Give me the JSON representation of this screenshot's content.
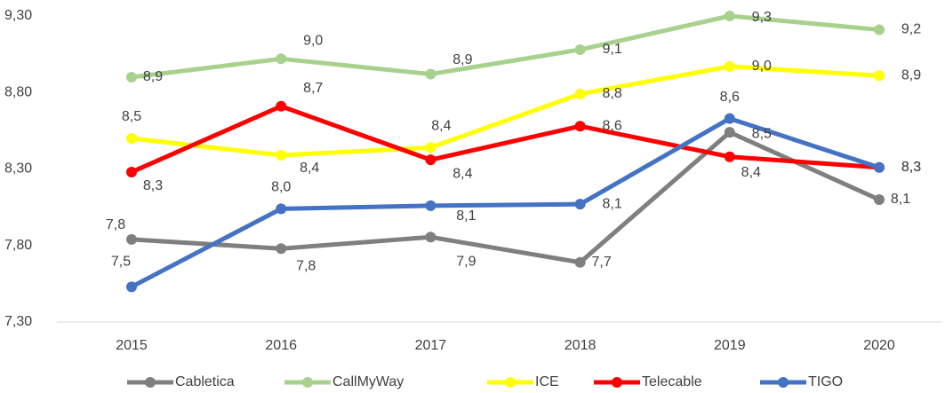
{
  "chart_data": {
    "type": "line",
    "categories": [
      "2015",
      "2016",
      "2017",
      "2018",
      "2019",
      "2020"
    ],
    "series": [
      {
        "name": "Cabletica",
        "color": "#7f7f7f",
        "values": [
          7.84,
          7.78,
          7.855,
          7.69,
          8.54,
          8.1
        ],
        "value_labels": [
          "7,8",
          "7,8",
          "7,9",
          "7,7",
          "8,5",
          "8,1"
        ]
      },
      {
        "name": "CallMyWay",
        "color": "#a9d18e",
        "values": [
          8.9,
          9.02,
          8.92,
          9.08,
          9.3,
          9.21
        ],
        "value_labels": [
          "8,9",
          "9,0",
          "8,9",
          "9,1",
          "9,3",
          "9,2"
        ]
      },
      {
        "name": "ICE",
        "color": "#ffff00",
        "values": [
          8.5,
          8.39,
          8.44,
          8.79,
          8.97,
          8.91
        ],
        "value_labels": [
          "8,5",
          "8,4",
          "8,4",
          "8,8",
          "9,0",
          "8,9"
        ]
      },
      {
        "name": "Telecable",
        "color": "#ff0000",
        "values": [
          8.28,
          8.71,
          8.36,
          8.58,
          8.38,
          8.31
        ],
        "value_labels": [
          "8,3",
          "8,7",
          "8,4",
          "8,6",
          "8,4",
          "8,3"
        ]
      },
      {
        "name": "TIGO",
        "color": "#4472c4",
        "values": [
          7.53,
          8.04,
          8.06,
          8.07,
          8.63,
          8.31
        ],
        "value_labels": [
          "7,5",
          "8,0",
          "8,1",
          "8,1",
          "8,6",
          "8,3"
        ]
      }
    ],
    "ylim": [
      7.3,
      9.3
    ],
    "yticks": [
      {
        "value": 7.3,
        "label": "7,30"
      },
      {
        "value": 7.8,
        "label": "7,80"
      },
      {
        "value": 8.3,
        "label": "8,30"
      },
      {
        "value": 8.8,
        "label": "8,80"
      },
      {
        "value": 9.3,
        "label": "9,30"
      }
    ],
    "grid": false,
    "legend": "bottom"
  }
}
